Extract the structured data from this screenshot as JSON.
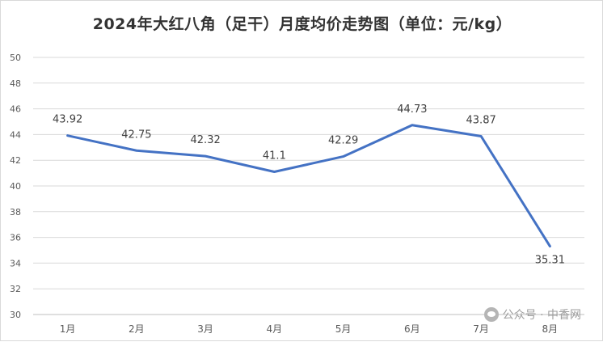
{
  "chart_data": {
    "type": "line",
    "title": "2024年大红八角（足干）月度均价走势图（单位：元/kg）",
    "categories": [
      "1月",
      "2月",
      "3月",
      "4月",
      "5月",
      "6月",
      "7月",
      "8月"
    ],
    "series": [
      {
        "values": [
          43.92,
          42.75,
          42.32,
          41.1,
          42.29,
          44.73,
          43.87,
          35.31
        ]
      }
    ],
    "value_labels": [
      "43.92",
      "42.75",
      "42.32",
      "41.1",
      "42.29",
      "44.73",
      "43.87",
      "35.31"
    ],
    "ylim": [
      30,
      50
    ],
    "yticks": [
      30,
      32,
      34,
      36,
      38,
      40,
      42,
      44,
      46,
      48,
      50
    ],
    "grid": true,
    "legend": "none",
    "line_color": "#4472c4"
  },
  "watermark": {
    "icon": "wechat-icon",
    "text": "公众号 · 中香网"
  }
}
